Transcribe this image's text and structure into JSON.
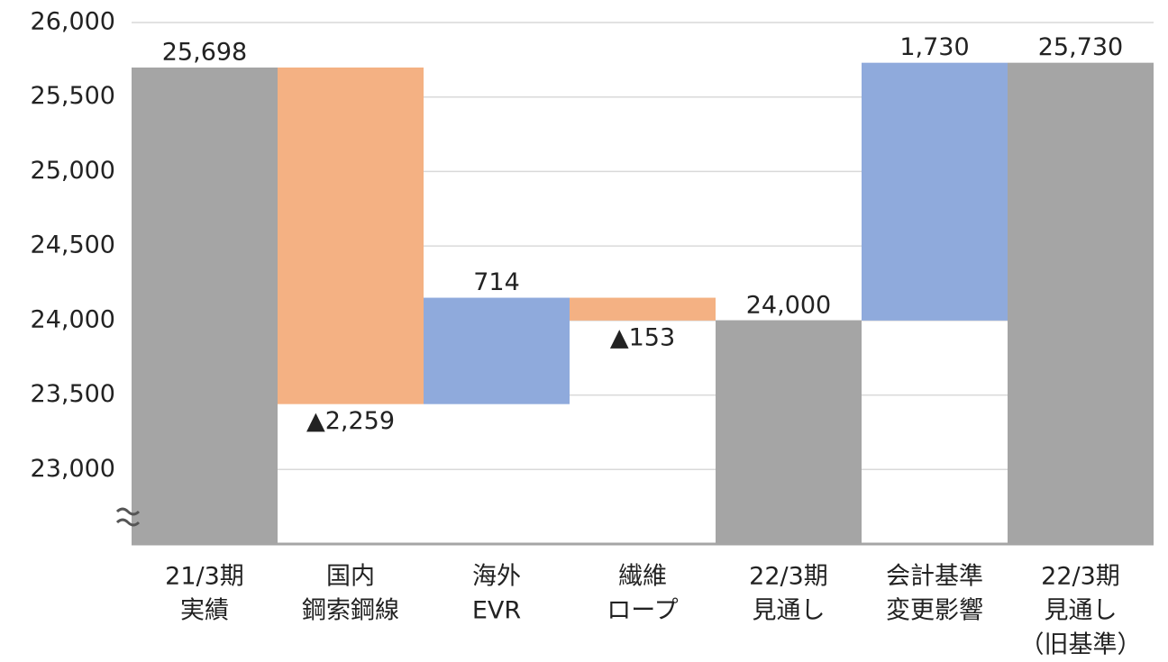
{
  "chart_data": {
    "type": "waterfall",
    "categories": [
      [
        "21/3期",
        "実績"
      ],
      [
        "国内",
        "鋼索鋼線"
      ],
      [
        "海外",
        "EVR"
      ],
      [
        "繊維",
        "ロープ"
      ],
      [
        "22/3期",
        "見通し"
      ],
      [
        "会計基準",
        "変更影響"
      ],
      [
        "22/3期",
        "見通し",
        "（旧基準）"
      ]
    ],
    "values": [
      25698,
      -2259,
      714,
      -153,
      24000,
      1730,
      25730
    ],
    "value_labels": [
      "25,698",
      "▲2,259",
      "714",
      "▲153",
      "24,000",
      "1,730",
      "25,730"
    ],
    "measure": [
      "absolute",
      "relative",
      "relative",
      "relative",
      "absolute",
      "relative",
      "absolute"
    ],
    "colors": [
      "#a5a5a5",
      "#f4b183",
      "#8faadc",
      "#f4b183",
      "#a5a5a5",
      "#8faadc",
      "#a5a5a5"
    ],
    "ylim": [
      22500,
      26000
    ],
    "yticks": [
      {
        "value": 23000,
        "label": "23,000"
      },
      {
        "value": 23500,
        "label": "23,500"
      },
      {
        "value": 24000,
        "label": "24,000"
      },
      {
        "value": 24500,
        "label": "24,500"
      },
      {
        "value": 25000,
        "label": "25,000"
      },
      {
        "value": 25500,
        "label": "25,500"
      },
      {
        "value": 26000,
        "label": "26,000"
      }
    ],
    "grid": true
  }
}
